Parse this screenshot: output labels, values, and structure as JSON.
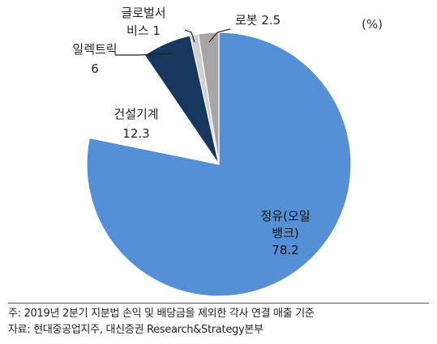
{
  "chart_data": {
    "type": "pie",
    "unit_label": "(%)",
    "slices": [
      {
        "label_lines": [
          "정유(오일",
          "뱅크)"
        ],
        "value": 78.2,
        "color": "#5590d6"
      },
      {
        "label_lines": [
          "건설기계"
        ],
        "value": 12.3,
        "color": "#ffffff"
      },
      {
        "label_lines": [
          "일렉트릭"
        ],
        "value": 6,
        "color": "#17375e"
      },
      {
        "label_lines": [
          "글로벌서",
          "비스"
        ],
        "value": 1,
        "color": "#d0d0d0"
      },
      {
        "label_lines": [
          "로봇"
        ],
        "value": 2.5,
        "color": "#a6a6a6"
      }
    ],
    "value_labels": [
      "78.2",
      "12.3",
      "6",
      "1",
      "2.5"
    ]
  },
  "footer": {
    "note": "주: 2019년 2분기 지분법 손익 및 배당금을 제외한 각사 연결 매출 기준",
    "source": "자료: 현대중공업지주, 대신증권 Research&Strategy본부"
  }
}
